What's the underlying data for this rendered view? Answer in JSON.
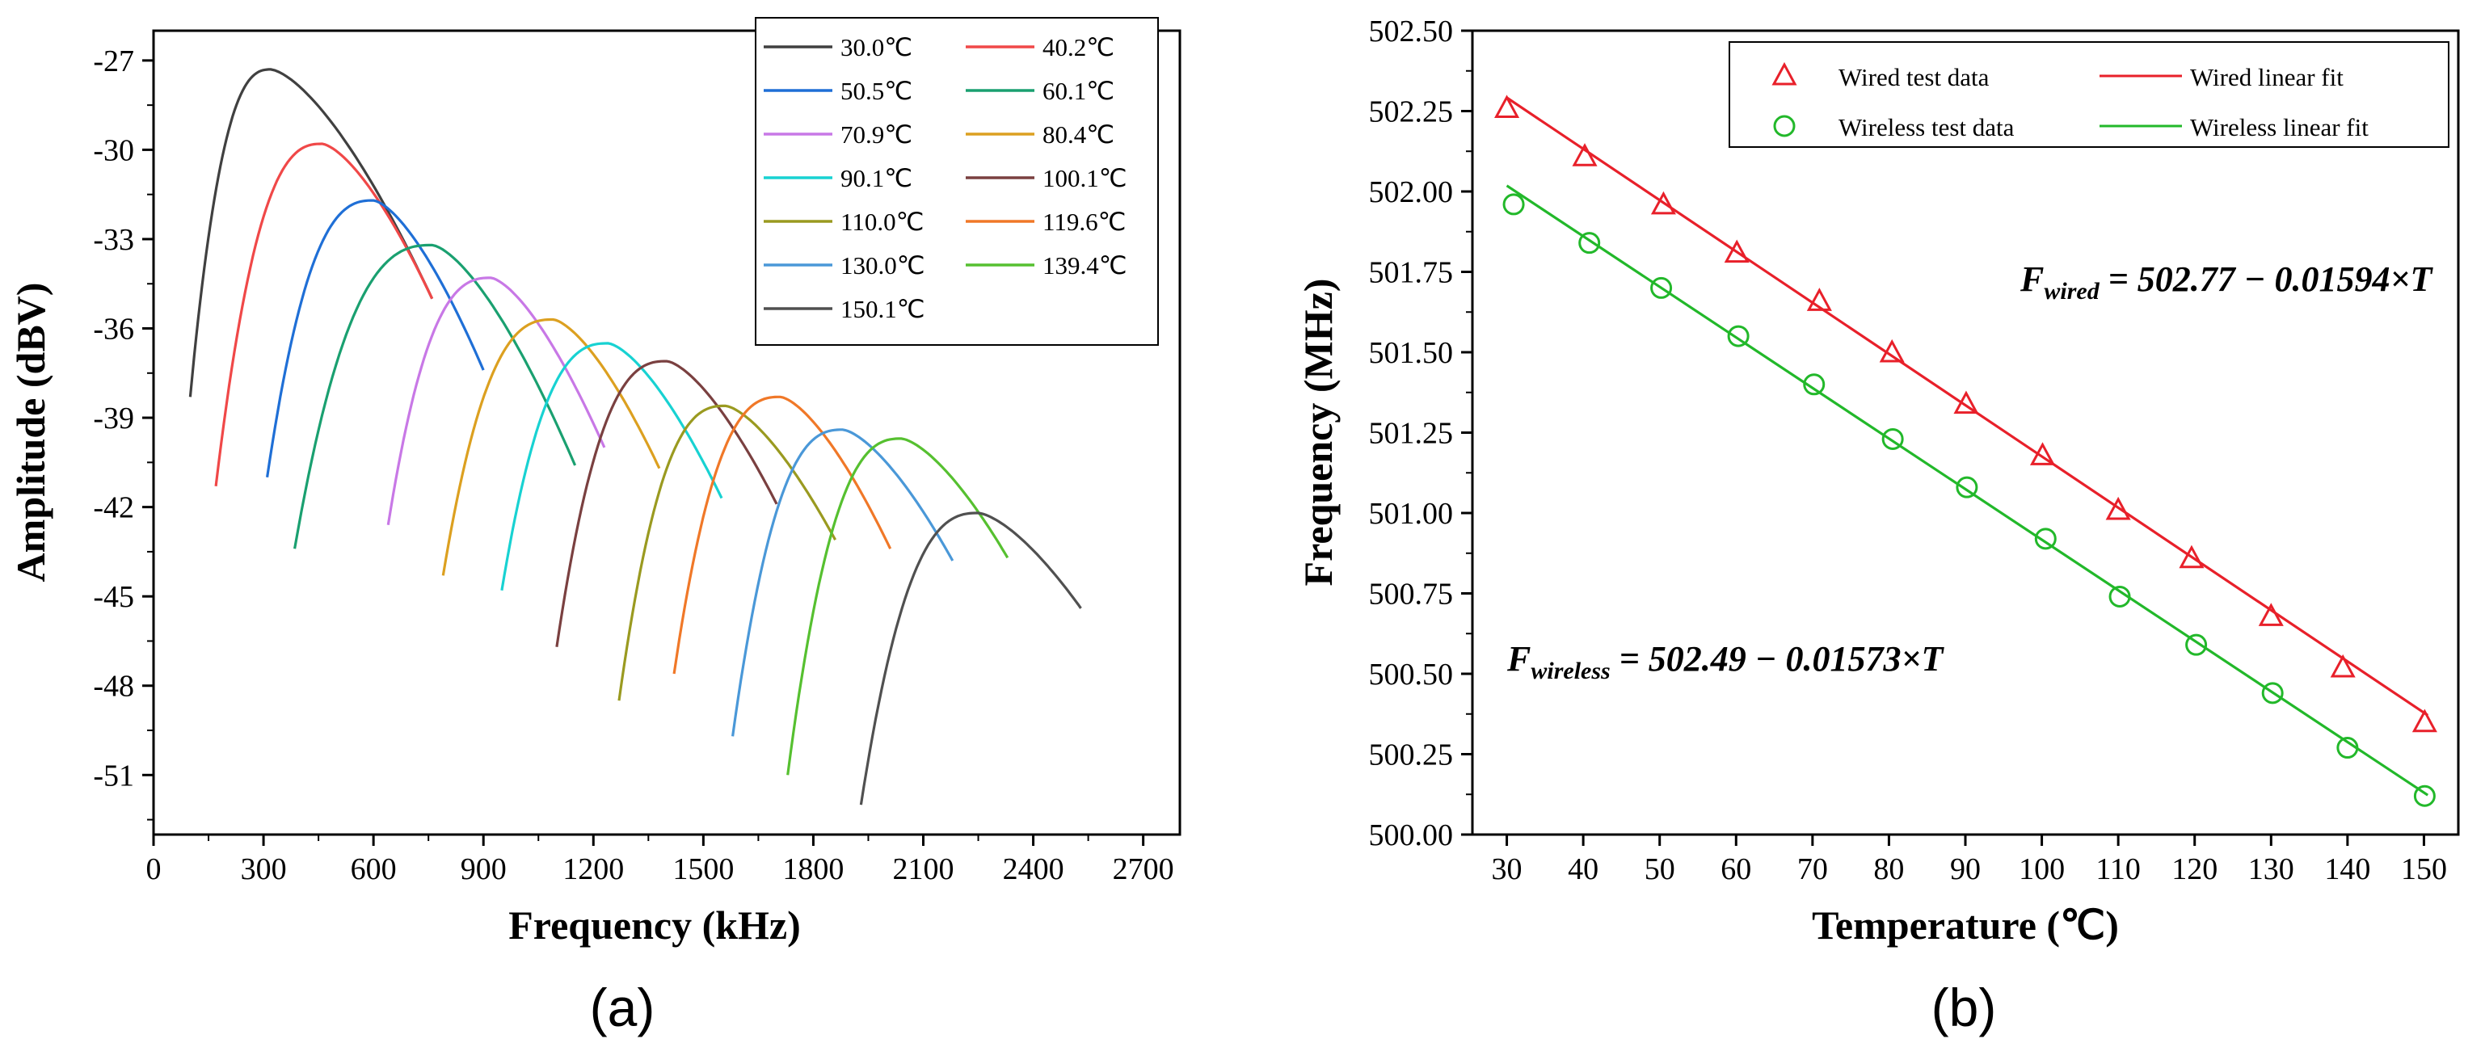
{
  "chart_data": [
    {
      "type": "line",
      "panel_label": "(a)",
      "xlabel": "Frequency (kHz)",
      "ylabel": "Amplitude (dBV)",
      "xlim": [
        0,
        2800
      ],
      "ylim": [
        -53,
        -26
      ],
      "xticks": [
        0,
        300,
        600,
        900,
        1200,
        1500,
        1800,
        2100,
        2400,
        2700
      ],
      "yticks": [
        -51,
        -48,
        -45,
        -42,
        -39,
        -36,
        -33,
        -30,
        -27
      ],
      "legend_position": "top-right",
      "series": [
        {
          "name": "30.0℃",
          "color": "#404040",
          "start": [
            100,
            -38.3
          ],
          "peak": [
            320,
            -27.3
          ],
          "end": [
            760,
            -35.0
          ]
        },
        {
          "name": "40.2℃",
          "color": "#f04848",
          "start": [
            170,
            -41.3
          ],
          "peak": [
            460,
            -29.8
          ],
          "end": [
            760,
            -35.0
          ]
        },
        {
          "name": "50.5℃",
          "color": "#1f6fd6",
          "start": [
            310,
            -41.0
          ],
          "peak": [
            600,
            -31.7
          ],
          "end": [
            900,
            -37.4
          ]
        },
        {
          "name": "60.1℃",
          "color": "#1aa070",
          "start": [
            385,
            -43.4
          ],
          "peak": [
            760,
            -33.2
          ],
          "end": [
            1150,
            -40.6
          ]
        },
        {
          "name": "70.9℃",
          "color": "#c878e6",
          "start": [
            640,
            -42.6
          ],
          "peak": [
            920,
            -34.3
          ],
          "end": [
            1230,
            -40.0
          ]
        },
        {
          "name": "80.4℃",
          "color": "#dca020",
          "start": [
            790,
            -44.3
          ],
          "peak": [
            1090,
            -35.7
          ],
          "end": [
            1380,
            -40.7
          ]
        },
        {
          "name": "90.1℃",
          "color": "#18d2d2",
          "start": [
            950,
            -44.8
          ],
          "peak": [
            1240,
            -36.5
          ],
          "end": [
            1550,
            -41.7
          ]
        },
        {
          "name": "100.1℃",
          "color": "#7a4040",
          "start": [
            1100,
            -46.7
          ],
          "peak": [
            1400,
            -37.1
          ],
          "end": [
            1700,
            -41.9
          ]
        },
        {
          "name": "110.0℃",
          "color": "#9a9a20",
          "start": [
            1270,
            -48.5
          ],
          "peak": [
            1560,
            -38.6
          ],
          "end": [
            1860,
            -43.1
          ]
        },
        {
          "name": "119.6℃",
          "color": "#f07828",
          "start": [
            1420,
            -47.6
          ],
          "peak": [
            1710,
            -38.3
          ],
          "end": [
            2010,
            -43.4
          ]
        },
        {
          "name": "130.0℃",
          "color": "#4a98d8",
          "start": [
            1580,
            -49.7
          ],
          "peak": [
            1880,
            -39.4
          ],
          "end": [
            2180,
            -43.8
          ]
        },
        {
          "name": "139.4℃",
          "color": "#56c030",
          "start": [
            1730,
            -51.0
          ],
          "peak": [
            2040,
            -39.7
          ],
          "end": [
            2330,
            -43.7
          ]
        },
        {
          "name": "150.1℃",
          "color": "#505050",
          "start": [
            1930,
            -52.0
          ],
          "peak": [
            2250,
            -42.2
          ],
          "end": [
            2530,
            -45.4
          ]
        }
      ]
    },
    {
      "type": "scatter",
      "panel_label": "(b)",
      "xlabel": "Temperature (℃)",
      "ylabel": "Frequency (MHz)",
      "xlim": [
        25.5,
        154.5
      ],
      "ylim": [
        500.0,
        502.5
      ],
      "xticks": [
        30,
        40,
        50,
        60,
        70,
        80,
        90,
        100,
        110,
        120,
        130,
        140,
        150
      ],
      "yticks": [
        "500.00",
        "500.25",
        "500.50",
        "500.75",
        "501.00",
        "501.25",
        "501.50",
        "501.75",
        "502.00",
        "502.25",
        "502.50"
      ],
      "legend_position": "top-right",
      "legend": [
        "Wired test data",
        "Wired linear fit",
        "Wireless test data",
        "Wireless linear fit"
      ],
      "series": [
        {
          "name": "Wired test data",
          "marker": "triangle",
          "color": "#e8202a",
          "x": [
            30,
            40.2,
            50.5,
            60.1,
            70.9,
            80.4,
            90.1,
            100.1,
            110.0,
            119.6,
            130.0,
            139.4,
            150.1
          ],
          "y": [
            502.26,
            502.11,
            501.96,
            501.81,
            501.66,
            501.5,
            501.34,
            501.18,
            501.01,
            500.86,
            500.68,
            500.52,
            500.35
          ],
          "fit": {
            "name": "Wired linear fit",
            "intercept": 502.77,
            "slope": -0.01594,
            "color": "#e8202a"
          }
        },
        {
          "name": "Wireless test data",
          "marker": "circle",
          "color": "#22b82a",
          "x": [
            30.9,
            40.8,
            50.2,
            60.3,
            70.2,
            80.5,
            90.2,
            100.5,
            110.2,
            120.2,
            130.2,
            140.0,
            150.1
          ],
          "y": [
            501.96,
            501.84,
            501.7,
            501.55,
            501.4,
            501.23,
            501.08,
            500.92,
            500.74,
            500.59,
            500.44,
            500.27,
            500.12
          ],
          "fit": {
            "name": "Wireless linear fit",
            "intercept": 502.49,
            "slope": -0.01573,
            "color": "#22b82a"
          }
        }
      ],
      "annotations": {
        "wired": {
          "main": "F",
          "sub": "wired",
          "rest": " = 502.77 − 0.01594×T"
        },
        "wireless": {
          "main": "F",
          "sub": "wireless",
          "rest": " = 502.49 − 0.01573×T"
        }
      }
    }
  ]
}
